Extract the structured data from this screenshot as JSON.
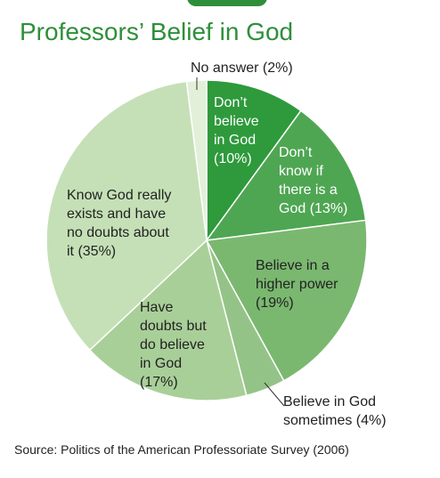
{
  "chart_data": {
    "type": "pie",
    "title": "Professors’ Belief in God",
    "slices": [
      {
        "label_lines": [
          "Don’t",
          "believe",
          "in God",
          "(10%)"
        ],
        "value": 10,
        "color": "#2e9a3c",
        "text_color": "#ffffff"
      },
      {
        "label_lines": [
          "Don’t",
          "know if",
          "there is a",
          "God (13%)"
        ],
        "value": 13,
        "color": "#4ea652",
        "text_color": "#ffffff"
      },
      {
        "label_lines": [
          "Believe in a",
          "higher power",
          "(19%)"
        ],
        "value": 19,
        "color": "#7ab870",
        "text_color": "#222222"
      },
      {
        "label_lines": [
          "Believe in God",
          "sometimes (4%)"
        ],
        "value": 4,
        "color": "#94c387",
        "text_color": "#222222"
      },
      {
        "label_lines": [
          "Have",
          "doubts but",
          "do believe",
          "in God",
          "(17%)"
        ],
        "value": 17,
        "color": "#a9cf99",
        "text_color": "#222222"
      },
      {
        "label_lines": [
          "Know God really",
          "exists and have",
          "no doubts about",
          "it (35%)"
        ],
        "value": 35,
        "color": "#c5e0b6",
        "text_color": "#222222"
      },
      {
        "label_lines": [
          "No answer (2%)"
        ],
        "value": 2,
        "color": "#e2f0d9",
        "text_color": "#222222"
      }
    ],
    "source": "Source: Politics of the American Professoriate Survey (2006)"
  }
}
